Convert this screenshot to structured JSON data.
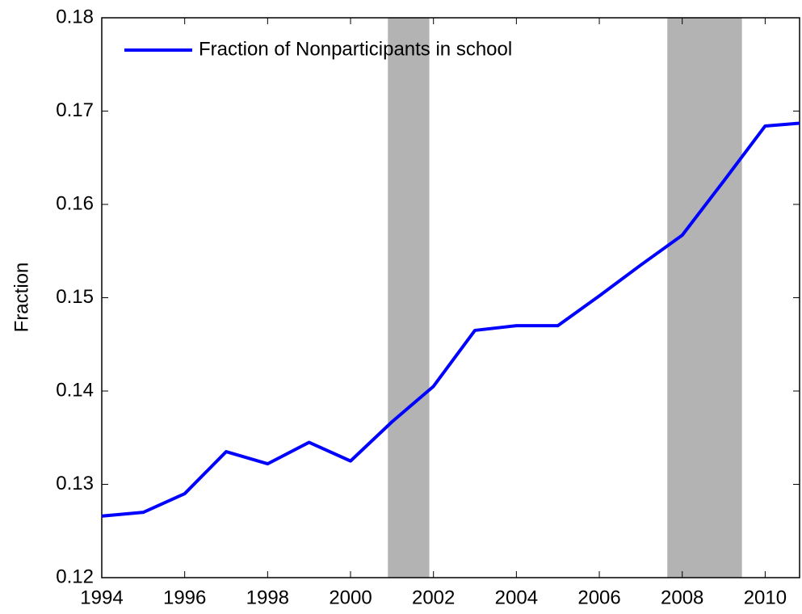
{
  "chart_data": {
    "type": "line",
    "y_label": "Fraction",
    "x": [
      1994,
      1995,
      1996,
      1997,
      1998,
      1999,
      2000,
      2001,
      2002,
      2003,
      2004,
      2005,
      2006,
      2007,
      2008,
      2009,
      2010,
      2010.83
    ],
    "series": [
      {
        "name": "Fraction of Nonparticipants in school",
        "color": "#0000ff",
        "values": [
          0.1266,
          0.127,
          0.129,
          0.1335,
          0.1322,
          0.1345,
          0.1325,
          0.1367,
          0.1405,
          0.1465,
          0.147,
          0.147,
          0.1502,
          0.1535,
          0.1567,
          0.1625,
          0.1684,
          0.1687
        ]
      }
    ],
    "shaded_regions": [
      [
        2000.9,
        2001.9
      ],
      [
        2007.64,
        2009.44
      ]
    ],
    "shade_color": "#b3b3b3",
    "xlim": [
      1994,
      2010.83
    ],
    "xticks": [
      1994,
      1996,
      1998,
      2000,
      2002,
      2004,
      2006,
      2008,
      2010
    ],
    "ylim": [
      0.12,
      0.18
    ],
    "yticks": [
      0.12,
      0.13,
      0.14,
      0.15,
      0.16,
      0.17,
      0.18
    ],
    "legend": "upper left"
  }
}
